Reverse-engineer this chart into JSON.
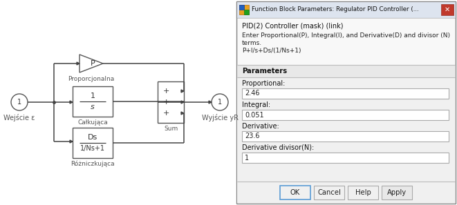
{
  "bg_color": "#ffffff",
  "simulink_bg": "#ffffff",
  "title_bar_text": "Function Block Parameters: Regulator PID Controller (...",
  "close_btn_color": "#cc3333",
  "subtitle1": "PID(2) Controller (mask) (link)",
  "desc_line1": "Enter Proportional(P), Integral(I), and Derivative(D) and divisor (N)",
  "desc_line2": "terms.",
  "desc_line3": "P+I/s+Ds/(1/Ns+1)",
  "section_label": "Parameters",
  "param_labels": [
    "Proportional:",
    "Integral:",
    "Derivative:",
    "Derivative divisor(N):"
  ],
  "param_values": [
    "2.46",
    "0.051",
    "23.6",
    "1"
  ],
  "btn_labels": [
    "OK",
    "Cancel",
    "Help",
    "Apply"
  ],
  "left_label_in": "Wejście ε",
  "left_label_out": "Wyjście yR",
  "block_p_label": "Proporcjonalna",
  "block_i_label": "Całkująca",
  "block_d_label": "Różniczkująca",
  "block_sum_label": "Sum",
  "wire_color": "#444444",
  "block_border": "#555555",
  "text_color": "#333333"
}
